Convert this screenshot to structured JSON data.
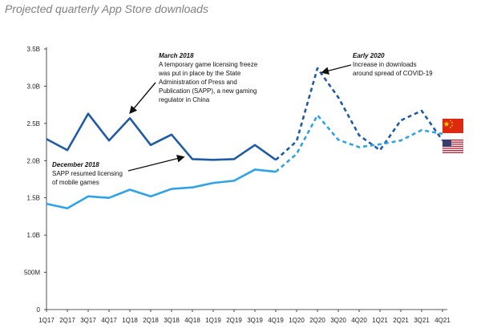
{
  "chart_data": {
    "type": "line",
    "title": "Projected quarterly App Store downloads",
    "xlabel": "",
    "ylabel": "",
    "x": [
      "1Q17",
      "2Q17",
      "3Q17",
      "4Q17",
      "1Q18",
      "2Q18",
      "3Q18",
      "4Q18",
      "1Q19",
      "2Q19",
      "3Q19",
      "4Q19",
      "1Q20",
      "2Q20",
      "3Q20",
      "4Q20",
      "1Q21",
      "2Q21",
      "3Q21",
      "4Q21"
    ],
    "ylim": [
      0,
      3500000000
    ],
    "yticks": [
      {
        "value": 0,
        "label": "0"
      },
      {
        "value": 500000000,
        "label": "500M"
      },
      {
        "value": 1000000000,
        "label": "1.0B"
      },
      {
        "value": 1500000000,
        "label": "1.5B"
      },
      {
        "value": 2000000000,
        "label": "2.0B"
      },
      {
        "value": 2500000000,
        "label": "2.5B"
      },
      {
        "value": 3000000000,
        "label": "3.0B"
      },
      {
        "value": 3500000000,
        "label": "3.5B"
      }
    ],
    "grid": false,
    "series": [
      {
        "country": "China",
        "flag": "china-flag-icon",
        "color": "#1f5ba6",
        "values": [
          2290000000,
          2140000000,
          2630000000,
          2270000000,
          2570000000,
          2210000000,
          2350000000,
          2020000000,
          2010000000,
          2020000000,
          2210000000,
          2010000000,
          2260000000,
          3240000000,
          2850000000,
          2340000000,
          2140000000,
          2540000000,
          2670000000,
          2270000000
        ],
        "projected_from_index": 11
      },
      {
        "country": "United States",
        "flag": "us-flag-icon",
        "color": "#2ea3e8",
        "values": [
          1420000000,
          1360000000,
          1520000000,
          1500000000,
          1610000000,
          1520000000,
          1620000000,
          1640000000,
          1700000000,
          1730000000,
          1880000000,
          1850000000,
          2090000000,
          2610000000,
          2280000000,
          2180000000,
          2220000000,
          2270000000,
          2410000000,
          2360000000
        ],
        "projected_from_index": 11
      }
    ],
    "annotations": [
      {
        "title": "March 2018",
        "lines": [
          "A temporary game licensing freeze",
          "was put in place by the State",
          "Administration of Press and",
          "Publication (SAPP), a new gaming",
          "regulator in China"
        ],
        "target_index": 4,
        "target_series": 0
      },
      {
        "title": "December 2018",
        "lines": [
          "SAPP resumed licensing",
          "of mobile games"
        ],
        "target_index": 7,
        "target_series": 0
      },
      {
        "title": "Early 2020",
        "lines": [
          "Increase in downloads",
          "around spread of COVID-19"
        ],
        "target_index": 13,
        "target_series": 0
      }
    ]
  }
}
